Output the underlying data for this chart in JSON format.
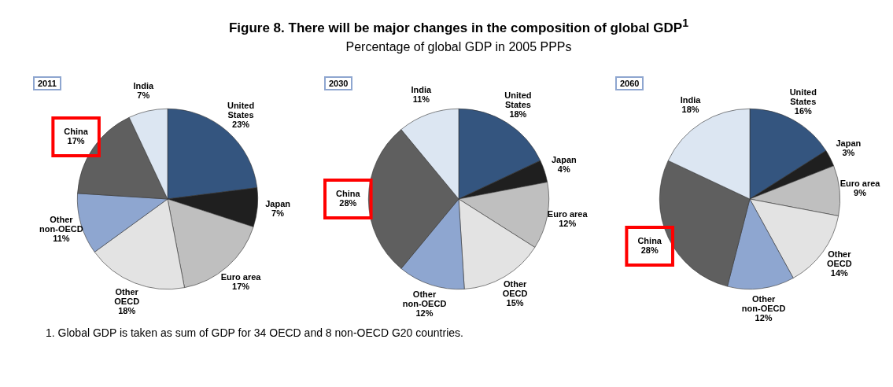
{
  "chart_data": [
    {
      "type": "pie",
      "annotations": [
        "2011",
        "1. Global GDP is taken as sum of GDP for 34 OECD and 8 non-OECD G20 countries."
      ],
      "categories": [
        "United States",
        "Japan",
        "Euro area",
        "Other OECD",
        "Other non-OECD",
        "China",
        "India"
      ],
      "values": [
        23,
        7,
        17,
        18,
        11,
        17,
        7
      ],
      "value_labels": [
        "23%",
        "7%",
        "17%",
        "18%",
        "11%",
        "17%",
        "7%"
      ],
      "colors": [
        "#34557f",
        "#1f1f1f",
        "#bfbfbf",
        "#e3e3e3",
        "#8ea6d0",
        "#5f5f5f",
        "#dce6f2"
      ]
    },
    {
      "type": "pie",
      "title": "Figure 8. There will be major changes in the composition of global GDP$^{1}$",
      "subtitle": "Percentage of global GDP in 2005 PPPs",
      "annotations": [
        "2030"
      ],
      "categories": [
        "United States",
        "Japan",
        "Euro area",
        "Other OECD",
        "Other non-OECD",
        "China",
        "India"
      ],
      "values": [
        18,
        4,
        12,
        15,
        12,
        28,
        11
      ],
      "value_labels": [
        "18%",
        "4%",
        "12%",
        "15%",
        "12%",
        "28%",
        "11%"
      ],
      "colors": [
        "#34557f",
        "#1f1f1f",
        "#bfbfbf",
        "#e3e3e3",
        "#8ea6d0",
        "#5f5f5f",
        "#dce6f2"
      ]
    },
    {
      "type": "pie",
      "annotations": [
        "2060"
      ],
      "categories": [
        "United States",
        "Japan",
        "Euro area",
        "Other OECD",
        "Other non-OECD",
        "China",
        "India"
      ],
      "values": [
        16,
        3,
        9,
        14,
        12,
        28,
        18
      ],
      "value_labels": [
        "16%",
        "3%",
        "9%",
        "14%",
        "12%",
        "28%",
        "18%"
      ],
      "colors": [
        "#34557f",
        "#1f1f1f",
        "#bfbfbf",
        "#e3e3e3",
        "#8ea6d0",
        "#5f5f5f",
        "#dce6f2"
      ]
    }
  ]
}
